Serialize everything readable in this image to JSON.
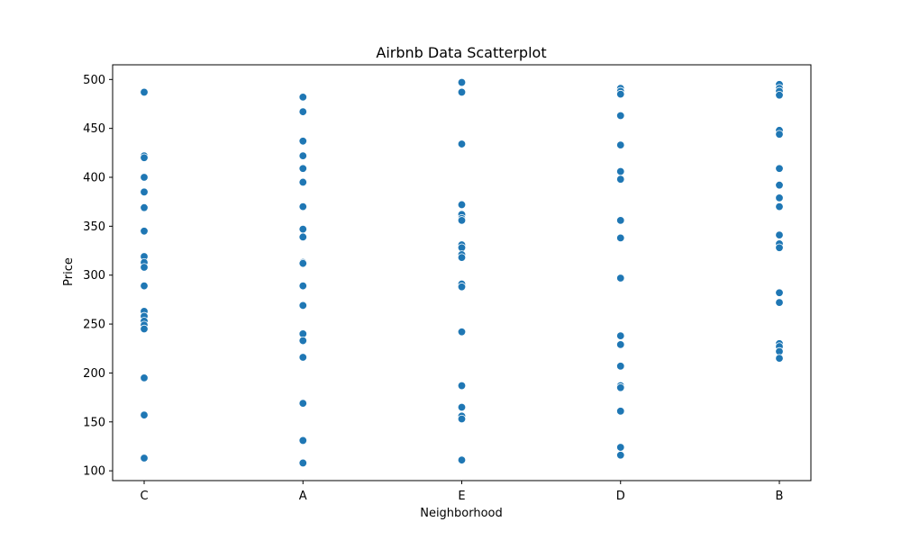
{
  "chart_data": {
    "type": "scatter",
    "title": "Airbnb Data Scatterplot",
    "xlabel": "Neighborhood",
    "ylabel": "Price",
    "categories": [
      "C",
      "A",
      "E",
      "D",
      "B"
    ],
    "ylim": [
      90,
      515
    ],
    "yticks": [
      "100",
      "150",
      "200",
      "250",
      "300",
      "350",
      "400",
      "450",
      "500"
    ],
    "grid": false,
    "legend": "none",
    "point_color": "#1f77b4",
    "points": [
      {
        "x": "C",
        "y": 487
      },
      {
        "x": "C",
        "y": 422
      },
      {
        "x": "C",
        "y": 420
      },
      {
        "x": "C",
        "y": 400
      },
      {
        "x": "C",
        "y": 385
      },
      {
        "x": "C",
        "y": 369
      },
      {
        "x": "C",
        "y": 345
      },
      {
        "x": "C",
        "y": 319
      },
      {
        "x": "C",
        "y": 313
      },
      {
        "x": "C",
        "y": 308
      },
      {
        "x": "C",
        "y": 289
      },
      {
        "x": "C",
        "y": 263
      },
      {
        "x": "C",
        "y": 258
      },
      {
        "x": "C",
        "y": 253
      },
      {
        "x": "C",
        "y": 249
      },
      {
        "x": "C",
        "y": 245
      },
      {
        "x": "C",
        "y": 195
      },
      {
        "x": "C",
        "y": 157
      },
      {
        "x": "C",
        "y": 113
      },
      {
        "x": "A",
        "y": 482
      },
      {
        "x": "A",
        "y": 467
      },
      {
        "x": "A",
        "y": 437
      },
      {
        "x": "A",
        "y": 422
      },
      {
        "x": "A",
        "y": 409
      },
      {
        "x": "A",
        "y": 395
      },
      {
        "x": "A",
        "y": 370
      },
      {
        "x": "A",
        "y": 347
      },
      {
        "x": "A",
        "y": 339
      },
      {
        "x": "A",
        "y": 313
      },
      {
        "x": "A",
        "y": 312
      },
      {
        "x": "A",
        "y": 289
      },
      {
        "x": "A",
        "y": 269
      },
      {
        "x": "A",
        "y": 240
      },
      {
        "x": "A",
        "y": 233
      },
      {
        "x": "A",
        "y": 216
      },
      {
        "x": "A",
        "y": 169
      },
      {
        "x": "A",
        "y": 131
      },
      {
        "x": "A",
        "y": 108
      },
      {
        "x": "E",
        "y": 497
      },
      {
        "x": "E",
        "y": 487
      },
      {
        "x": "E",
        "y": 434
      },
      {
        "x": "E",
        "y": 372
      },
      {
        "x": "E",
        "y": 362
      },
      {
        "x": "E",
        "y": 358
      },
      {
        "x": "E",
        "y": 356
      },
      {
        "x": "E",
        "y": 331
      },
      {
        "x": "E",
        "y": 328
      },
      {
        "x": "E",
        "y": 321
      },
      {
        "x": "E",
        "y": 318
      },
      {
        "x": "E",
        "y": 291
      },
      {
        "x": "E",
        "y": 288
      },
      {
        "x": "E",
        "y": 242
      },
      {
        "x": "E",
        "y": 187
      },
      {
        "x": "E",
        "y": 165
      },
      {
        "x": "E",
        "y": 156
      },
      {
        "x": "E",
        "y": 153
      },
      {
        "x": "E",
        "y": 111
      },
      {
        "x": "D",
        "y": 491
      },
      {
        "x": "D",
        "y": 488
      },
      {
        "x": "D",
        "y": 485
      },
      {
        "x": "D",
        "y": 463
      },
      {
        "x": "D",
        "y": 433
      },
      {
        "x": "D",
        "y": 406
      },
      {
        "x": "D",
        "y": 398
      },
      {
        "x": "D",
        "y": 356
      },
      {
        "x": "D",
        "y": 338
      },
      {
        "x": "D",
        "y": 297
      },
      {
        "x": "D",
        "y": 238
      },
      {
        "x": "D",
        "y": 229
      },
      {
        "x": "D",
        "y": 207
      },
      {
        "x": "D",
        "y": 187
      },
      {
        "x": "D",
        "y": 185
      },
      {
        "x": "D",
        "y": 161
      },
      {
        "x": "D",
        "y": 124
      },
      {
        "x": "D",
        "y": 116
      },
      {
        "x": "B",
        "y": 495
      },
      {
        "x": "B",
        "y": 491
      },
      {
        "x": "B",
        "y": 488
      },
      {
        "x": "B",
        "y": 484
      },
      {
        "x": "B",
        "y": 448
      },
      {
        "x": "B",
        "y": 444
      },
      {
        "x": "B",
        "y": 409
      },
      {
        "x": "B",
        "y": 392
      },
      {
        "x": "B",
        "y": 379
      },
      {
        "x": "B",
        "y": 370
      },
      {
        "x": "B",
        "y": 341
      },
      {
        "x": "B",
        "y": 332
      },
      {
        "x": "B",
        "y": 328
      },
      {
        "x": "B",
        "y": 282
      },
      {
        "x": "B",
        "y": 272
      },
      {
        "x": "B",
        "y": 230
      },
      {
        "x": "B",
        "y": 227
      },
      {
        "x": "B",
        "y": 222
      },
      {
        "x": "B",
        "y": 215
      }
    ]
  }
}
